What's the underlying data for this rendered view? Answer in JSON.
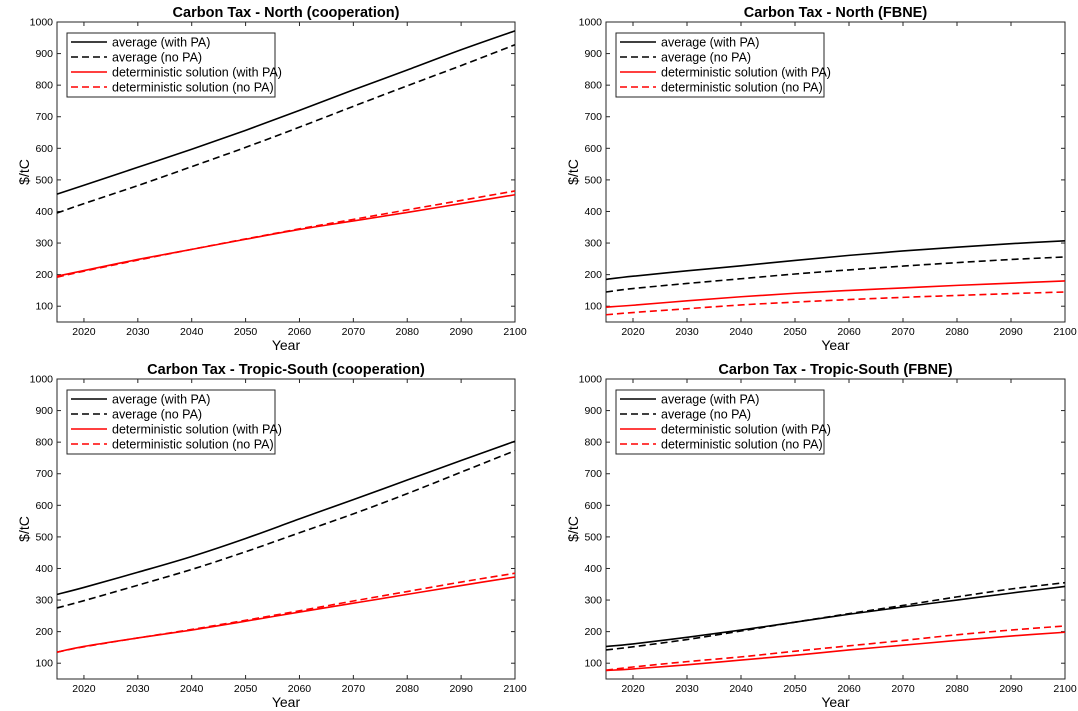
{
  "chart_data": [
    {
      "type": "line",
      "title": "Carbon Tax - North (cooperation)",
      "xlabel": "Year",
      "ylabel": "$/tC",
      "xlim": [
        2015,
        2100
      ],
      "ylim": [
        50,
        1000
      ],
      "xticks": [
        2020,
        2030,
        2040,
        2050,
        2060,
        2070,
        2080,
        2090,
        2100
      ],
      "yticks": [
        100,
        200,
        300,
        400,
        500,
        600,
        700,
        800,
        900,
        1000
      ],
      "legend_position": "top-left",
      "x": [
        2015,
        2020,
        2030,
        2040,
        2050,
        2060,
        2070,
        2080,
        2090,
        2100
      ],
      "series": [
        {
          "name": "average (with PA)",
          "color": "#000000",
          "dash": "solid",
          "values": [
            455,
            483,
            540,
            597,
            657,
            720,
            785,
            848,
            912,
            972
          ]
        },
        {
          "name": "average (no PA)",
          "color": "#000000",
          "dash": "dashed",
          "values": [
            395,
            425,
            482,
            542,
            603,
            667,
            733,
            798,
            862,
            928
          ]
        },
        {
          "name": "deterministic solution (with PA)",
          "color": "#ff0000",
          "dash": "solid",
          "values": [
            195,
            213,
            248,
            280,
            312,
            343,
            370,
            397,
            425,
            453
          ]
        },
        {
          "name": "deterministic solution (no PA)",
          "color": "#ff0000",
          "dash": "dashed",
          "values": [
            192,
            211,
            246,
            280,
            313,
            345,
            375,
            405,
            435,
            465
          ]
        }
      ]
    },
    {
      "type": "line",
      "title": "Carbon Tax - North (FBNE)",
      "xlabel": "Year",
      "ylabel": "$/tC",
      "xlim": [
        2015,
        2100
      ],
      "ylim": [
        50,
        1000
      ],
      "xticks": [
        2020,
        2030,
        2040,
        2050,
        2060,
        2070,
        2080,
        2090,
        2100
      ],
      "yticks": [
        100,
        200,
        300,
        400,
        500,
        600,
        700,
        800,
        900,
        1000
      ],
      "legend_position": "top-left",
      "x": [
        2015,
        2020,
        2030,
        2040,
        2050,
        2060,
        2070,
        2080,
        2090,
        2100
      ],
      "series": [
        {
          "name": "average (with PA)",
          "color": "#000000",
          "dash": "solid",
          "values": [
            185,
            195,
            212,
            228,
            245,
            261,
            275,
            287,
            298,
            307
          ]
        },
        {
          "name": "average (no PA)",
          "color": "#000000",
          "dash": "dashed",
          "values": [
            145,
            156,
            172,
            187,
            202,
            215,
            227,
            238,
            248,
            256
          ]
        },
        {
          "name": "deterministic solution (with PA)",
          "color": "#ff0000",
          "dash": "solid",
          "values": [
            97,
            103,
            117,
            130,
            141,
            150,
            158,
            166,
            173,
            180
          ]
        },
        {
          "name": "deterministic solution (no PA)",
          "color": "#ff0000",
          "dash": "dashed",
          "values": [
            73,
            80,
            92,
            104,
            113,
            121,
            128,
            134,
            140,
            145
          ]
        }
      ]
    },
    {
      "type": "line",
      "title": "Carbon Tax - Tropic-South (cooperation)",
      "xlabel": "Year",
      "ylabel": "$/tC",
      "xlim": [
        2015,
        2100
      ],
      "ylim": [
        50,
        1000
      ],
      "xticks": [
        2020,
        2030,
        2040,
        2050,
        2060,
        2070,
        2080,
        2090,
        2100
      ],
      "yticks": [
        100,
        200,
        300,
        400,
        500,
        600,
        700,
        800,
        900,
        1000
      ],
      "legend_position": "top-left",
      "x": [
        2015,
        2020,
        2030,
        2040,
        2050,
        2060,
        2070,
        2080,
        2090,
        2100
      ],
      "series": [
        {
          "name": "average (with PA)",
          "color": "#000000",
          "dash": "solid",
          "values": [
            318,
            340,
            388,
            438,
            495,
            557,
            618,
            680,
            742,
            803
          ]
        },
        {
          "name": "average (no PA)",
          "color": "#000000",
          "dash": "dashed",
          "values": [
            275,
            298,
            347,
            397,
            453,
            513,
            573,
            637,
            705,
            773
          ]
        },
        {
          "name": "deterministic solution (with PA)",
          "color": "#ff0000",
          "dash": "solid",
          "values": [
            135,
            153,
            180,
            205,
            233,
            262,
            290,
            318,
            346,
            373
          ]
        },
        {
          "name": "deterministic solution (no PA)",
          "color": "#ff0000",
          "dash": "dashed",
          "values": [
            135,
            152,
            180,
            207,
            236,
            266,
            297,
            327,
            357,
            385
          ]
        }
      ]
    },
    {
      "type": "line",
      "title": "Carbon Tax - Tropic-South (FBNE)",
      "xlabel": "Year",
      "ylabel": "$/tC",
      "xlim": [
        2015,
        2100
      ],
      "ylim": [
        50,
        1000
      ],
      "xticks": [
        2020,
        2030,
        2040,
        2050,
        2060,
        2070,
        2080,
        2090,
        2100
      ],
      "yticks": [
        100,
        200,
        300,
        400,
        500,
        600,
        700,
        800,
        900,
        1000
      ],
      "legend_position": "top-left",
      "x": [
        2015,
        2020,
        2030,
        2040,
        2050,
        2060,
        2070,
        2080,
        2090,
        2100
      ],
      "series": [
        {
          "name": "average (with PA)",
          "color": "#000000",
          "dash": "solid",
          "values": [
            153,
            161,
            182,
            205,
            230,
            255,
            278,
            300,
            322,
            343
          ]
        },
        {
          "name": "average (no PA)",
          "color": "#000000",
          "dash": "dashed",
          "values": [
            142,
            152,
            175,
            202,
            230,
            257,
            283,
            310,
            335,
            355
          ]
        },
        {
          "name": "deterministic solution (with PA)",
          "color": "#ff0000",
          "dash": "solid",
          "values": [
            77,
            82,
            95,
            110,
            125,
            142,
            157,
            172,
            186,
            198
          ]
        },
        {
          "name": "deterministic solution (no PA)",
          "color": "#ff0000",
          "dash": "dashed",
          "values": [
            78,
            88,
            105,
            120,
            138,
            155,
            172,
            190,
            205,
            218
          ]
        }
      ]
    }
  ]
}
